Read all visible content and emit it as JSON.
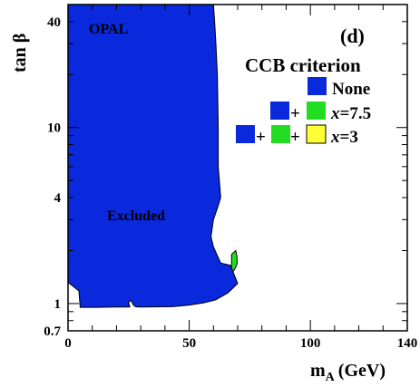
{
  "chart_data": {
    "type": "area",
    "title": "",
    "experiment": "OPAL",
    "panel": "(d)",
    "xlabel": "m",
    "xlabel_sub": "A",
    "xlabel_unit": "(GeV)",
    "ylabel": "tan β",
    "xlim": [
      0,
      140
    ],
    "ylim": [
      0.7,
      50
    ],
    "yscale": "log",
    "x_ticks": [
      "0",
      "50",
      "100",
      "140"
    ],
    "x_tick_values": [
      0,
      50,
      100,
      140
    ],
    "y_ticks": [
      "0.7",
      "1",
      "4",
      "10",
      "40"
    ],
    "y_tick_values": [
      0.7,
      1,
      4,
      10,
      40
    ],
    "annotations": [
      {
        "text": "Excluded",
        "x": 30,
        "y": 3.0
      }
    ],
    "legend": {
      "title": "CCB criterion",
      "placement": "top-right",
      "entries": [
        {
          "swatches": [
            "#0a28dc"
          ],
          "label": "None"
        },
        {
          "swatches": [
            "#0a28dc",
            "#22dd22"
          ],
          "var": "x",
          "value": "=7.5"
        },
        {
          "swatches": [
            "#0a28dc",
            "#22dd22",
            "#ffff33"
          ],
          "var": "x",
          "value": "=3"
        }
      ]
    },
    "colors": {
      "none": "#0a28dc",
      "x7_5": "#22dd22",
      "x3": "#ffff33"
    },
    "series": [
      {
        "region": "none",
        "points": [
          [
            0,
            50
          ],
          [
            60,
            50
          ],
          [
            60.5,
            40
          ],
          [
            61,
            30
          ],
          [
            61.6,
            20
          ],
          [
            62,
            10
          ],
          [
            62,
            6
          ],
          [
            63,
            4
          ],
          [
            62,
            3.6
          ],
          [
            60,
            3
          ],
          [
            59,
            2.4
          ],
          [
            60,
            2.1
          ],
          [
            63,
            1.7
          ],
          [
            67,
            1.65
          ],
          [
            70,
            1.3
          ],
          [
            66,
            1.15
          ],
          [
            61,
            1.05
          ],
          [
            56,
            1.01
          ],
          [
            50,
            0.98
          ],
          [
            43,
            0.96
          ],
          [
            30,
            0.955
          ],
          [
            28,
            0.958
          ],
          [
            27,
            0.98
          ],
          [
            26,
            1.04
          ],
          [
            25,
            1.02
          ],
          [
            25.5,
            0.955
          ],
          [
            20,
            0.955
          ],
          [
            12,
            0.952
          ],
          [
            5,
            0.952
          ],
          [
            4.5,
            1.18
          ],
          [
            0,
            1.32
          ]
        ]
      },
      {
        "region": "x7_5",
        "points": [
          [
            67.5,
            1.9
          ],
          [
            69.2,
            2.0
          ],
          [
            69.7,
            1.85
          ],
          [
            69.8,
            1.7
          ],
          [
            69.3,
            1.62
          ],
          [
            68.6,
            1.55
          ],
          [
            68,
            1.52
          ],
          [
            67.5,
            1.6
          ]
        ]
      }
    ]
  }
}
